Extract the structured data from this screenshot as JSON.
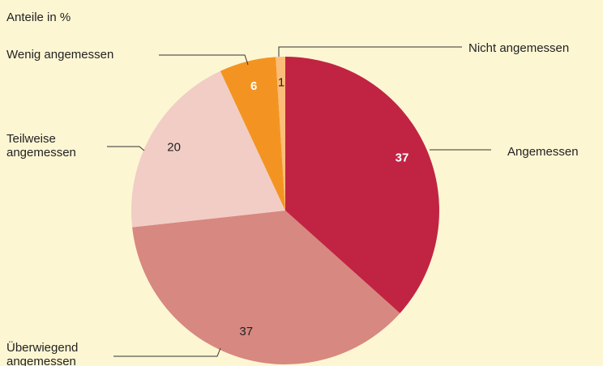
{
  "chart_data": {
    "type": "pie",
    "subtitle": "Anteile in %",
    "categories": [
      "Angemessen",
      "Überwiegend angemessen",
      "Teilweise angemessen",
      "Wenig angemessen",
      "Nicht angemessen"
    ],
    "values": [
      37,
      37,
      20,
      6,
      1
    ],
    "colors": [
      "#c12443",
      "#d78880",
      "#f1cdc5",
      "#f39422",
      "#fbbd78"
    ]
  }
}
